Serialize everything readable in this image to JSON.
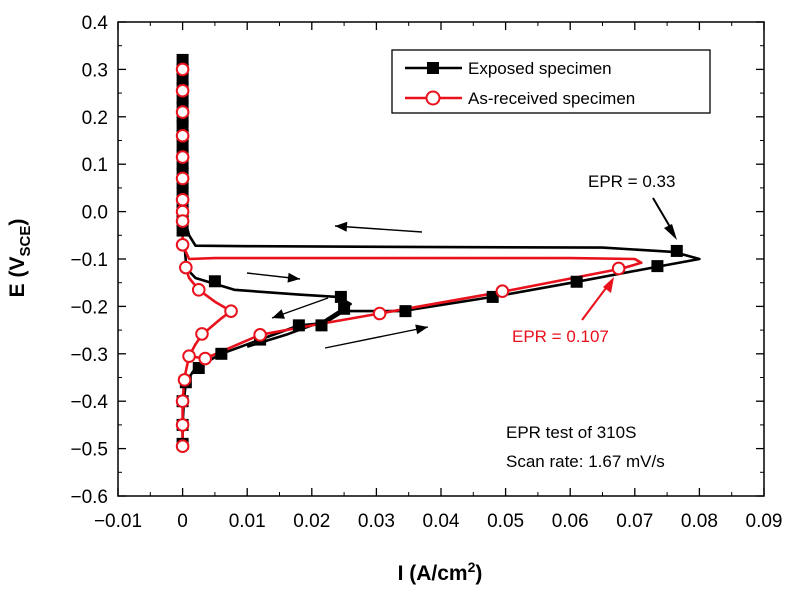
{
  "chart_data": {
    "type": "line",
    "title": "",
    "xlabel": {
      "main": "I (A/cm",
      "sup": "2",
      "close": ")"
    },
    "ylabel": {
      "main": "E (V",
      "sub": "SCE",
      "close": ")"
    },
    "xlim": [
      -0.01,
      0.09
    ],
    "ylim": [
      -0.6,
      0.4
    ],
    "xticks": [
      -0.01,
      0.0,
      0.01,
      0.02,
      0.03,
      0.04,
      0.05,
      0.06,
      0.07,
      0.08,
      0.09
    ],
    "xtick_labels": [
      "−0.01",
      "0",
      "0.01",
      "0.02",
      "0.03",
      "0.04",
      "0.05",
      "0.06",
      "0.07",
      "0.08",
      "0.09"
    ],
    "yticks": [
      0.4,
      0.3,
      0.2,
      0.1,
      0.0,
      -0.1,
      -0.2,
      -0.3,
      -0.4,
      -0.5,
      -0.6
    ],
    "ytick_labels": [
      "0.4",
      "0.3",
      "0.2",
      "0.1",
      "0.0",
      "−0.1",
      "−0.2",
      "−0.3",
      "−0.4",
      "−0.5",
      "−0.6"
    ],
    "grid": false,
    "legend_position": "top-right",
    "series": [
      {
        "name": "Exposed specimen",
        "color": "#000000",
        "marker": "filled-square",
        "curve": [
          [
            0.0,
            -0.5
          ],
          [
            0.0,
            -0.45
          ],
          [
            0.0002,
            -0.4
          ],
          [
            0.0005,
            -0.36
          ],
          [
            0.002,
            -0.33
          ],
          [
            0.006,
            -0.3
          ],
          [
            0.012,
            -0.27
          ],
          [
            0.018,
            -0.24
          ],
          [
            0.022,
            -0.235
          ],
          [
            0.025,
            -0.21
          ],
          [
            0.034,
            -0.21
          ],
          [
            0.048,
            -0.18
          ],
          [
            0.061,
            -0.148
          ],
          [
            0.074,
            -0.115
          ],
          [
            0.08,
            -0.1
          ],
          [
            0.076,
            -0.085
          ],
          [
            0.065,
            -0.076
          ],
          [
            0.04,
            -0.075
          ],
          [
            0.01,
            -0.073
          ],
          [
            0.002,
            -0.072
          ],
          [
            0.001,
            -0.05
          ],
          [
            0.0,
            0.0
          ],
          [
            0.0,
            0.1
          ],
          [
            0.0,
            0.2
          ],
          [
            0.0,
            0.32
          ]
        ],
        "curve_return": [
          [
            0.0003,
            -0.072
          ],
          [
            0.0006,
            -0.12
          ],
          [
            0.002,
            -0.14
          ],
          [
            0.008,
            -0.165
          ],
          [
            0.018,
            -0.175
          ],
          [
            0.024,
            -0.18
          ],
          [
            0.026,
            -0.195
          ],
          [
            0.022,
            -0.23
          ],
          [
            0.016,
            -0.26
          ],
          [
            0.01,
            -0.285
          ]
        ],
        "markers": [
          [
            0.0,
            -0.49
          ],
          [
            0.0,
            -0.45
          ],
          [
            0.0,
            -0.4
          ],
          [
            0.0005,
            -0.36
          ],
          [
            0.0025,
            -0.33
          ],
          [
            0.006,
            -0.3
          ],
          [
            0.012,
            -0.27
          ],
          [
            0.018,
            -0.24
          ],
          [
            0.0215,
            -0.24
          ],
          [
            0.025,
            -0.205
          ],
          [
            0.0245,
            -0.18
          ],
          [
            0.0345,
            -0.21
          ],
          [
            0.048,
            -0.18
          ],
          [
            0.061,
            -0.148
          ],
          [
            0.0735,
            -0.115
          ],
          [
            0.0765,
            -0.083
          ],
          [
            0.005,
            -0.147
          ],
          [
            0.0,
            0.32
          ],
          [
            0.0,
            0.3
          ],
          [
            0.0,
            0.28
          ],
          [
            0.0,
            0.26
          ],
          [
            0.0,
            0.24
          ],
          [
            0.0,
            0.22
          ],
          [
            0.0,
            0.2
          ],
          [
            0.0,
            0.18
          ],
          [
            0.0,
            0.16
          ],
          [
            0.0,
            0.14
          ],
          [
            0.0,
            0.12
          ],
          [
            0.0,
            0.1
          ],
          [
            0.0,
            0.08
          ],
          [
            0.0,
            0.06
          ],
          [
            0.0,
            0.04
          ],
          [
            0.0,
            0.02
          ],
          [
            0.0,
            0.0
          ],
          [
            0.0,
            -0.02
          ],
          [
            0.0,
            -0.04
          ]
        ]
      },
      {
        "name": "As-received specimen",
        "color": "#e8111c",
        "marker": "open-circle",
        "curve": [
          [
            0.0,
            -0.495
          ],
          [
            0.0,
            -0.45
          ],
          [
            0.0,
            -0.4
          ],
          [
            0.0003,
            -0.35
          ],
          [
            0.001,
            -0.305
          ],
          [
            0.0035,
            -0.31
          ],
          [
            0.012,
            -0.26
          ],
          [
            0.02,
            -0.24
          ],
          [
            0.0305,
            -0.215
          ],
          [
            0.05,
            -0.168
          ],
          [
            0.068,
            -0.12
          ],
          [
            0.071,
            -0.108
          ],
          [
            0.07,
            -0.1
          ],
          [
            0.06,
            -0.098
          ],
          [
            0.03,
            -0.098
          ],
          [
            0.005,
            -0.098
          ],
          [
            0.001,
            -0.1
          ],
          [
            0.0,
            -0.07
          ],
          [
            0.0,
            0.0
          ],
          [
            0.0,
            0.1
          ],
          [
            0.0,
            0.2
          ],
          [
            0.0,
            0.3
          ]
        ],
        "curve_return": [
          [
            0.0005,
            -0.12
          ],
          [
            0.001,
            -0.14
          ],
          [
            0.0025,
            -0.165
          ],
          [
            0.005,
            -0.19
          ],
          [
            0.0075,
            -0.21
          ],
          [
            0.006,
            -0.225
          ],
          [
            0.003,
            -0.26
          ],
          [
            0.002,
            -0.28
          ],
          [
            0.001,
            -0.305
          ]
        ],
        "markers": [
          [
            0.0,
            -0.495
          ],
          [
            0.0,
            -0.45
          ],
          [
            0.0,
            -0.4
          ],
          [
            0.0003,
            -0.355
          ],
          [
            0.001,
            -0.305
          ],
          [
            0.0035,
            -0.31
          ],
          [
            0.003,
            -0.258
          ],
          [
            0.0075,
            -0.21
          ],
          [
            0.0025,
            -0.165
          ],
          [
            0.0005,
            -0.118
          ],
          [
            0.0,
            -0.07
          ],
          [
            0.012,
            -0.26
          ],
          [
            0.0305,
            -0.215
          ],
          [
            0.0495,
            -0.168
          ],
          [
            0.0675,
            -0.12
          ],
          [
            0.0,
            0.0
          ],
          [
            0.0,
            0.025
          ],
          [
            0.0,
            0.07
          ],
          [
            0.0,
            0.115
          ],
          [
            0.0,
            0.16
          ],
          [
            0.0,
            0.21
          ],
          [
            0.0,
            0.255
          ],
          [
            0.0,
            0.3
          ],
          [
            0.0,
            -0.02
          ]
        ]
      }
    ],
    "annotations": [
      {
        "text": "EPR = 0.33",
        "color": "#000000"
      },
      {
        "text": "EPR = 0.107",
        "color": "#e8111c"
      },
      {
        "text": "EPR test of 310S",
        "color": "#000000"
      },
      {
        "text": "Scan rate: 1.67 mV/s",
        "color": "#000000"
      }
    ]
  }
}
